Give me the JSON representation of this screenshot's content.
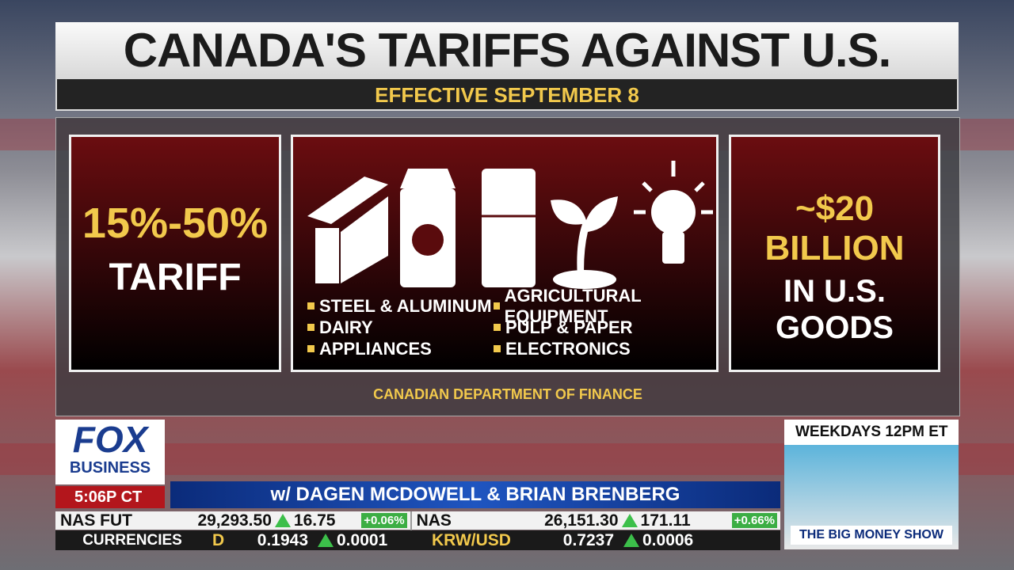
{
  "header": {
    "title": "CANADA'S TARIFFS AGAINST U.S.",
    "subtitle": "EFFECTIVE SEPTEMBER 8"
  },
  "panels": {
    "rate": {
      "value": "15%-50%",
      "label": "TARIFF"
    },
    "goods": {
      "items": [
        "STEEL & ALUMINUM",
        "DAIRY",
        "APPLIANCES",
        "AGRICULTURAL EQUIPMENT",
        "PULP & PAPER",
        "ELECTRONICS"
      ]
    },
    "amount": {
      "value": "~$20 BILLION",
      "lines": [
        "IN U.S.",
        "GOODS"
      ]
    }
  },
  "source": "CANADIAN DEPARTMENT OF FINANCE",
  "broadcast": {
    "logo": [
      "FOX",
      "BUSINESS"
    ],
    "time": "5:06P CT",
    "hosts": "w/ DAGEN MCDOWELL & BRIAN BRENBERG",
    "promo": "WEEKDAYS 12PM ET",
    "show": "THE BIG MONEY SHOW"
  },
  "ticker": {
    "row1": [
      {
        "name": "NAS FUT",
        "price": "29,293.50",
        "change": "16.75",
        "pct": "+0.06%"
      },
      {
        "name": "NAS",
        "price": "26,151.30",
        "change": "171.11",
        "pct": "+0.66%"
      }
    ],
    "row2": {
      "label": "CURRENCIES",
      "items": [
        {
          "name": "D",
          "price": "0.1943",
          "change": "0.0001"
        },
        {
          "name": "KRW/USD",
          "price": "0.7237",
          "change": "0.0006"
        }
      ]
    }
  }
}
